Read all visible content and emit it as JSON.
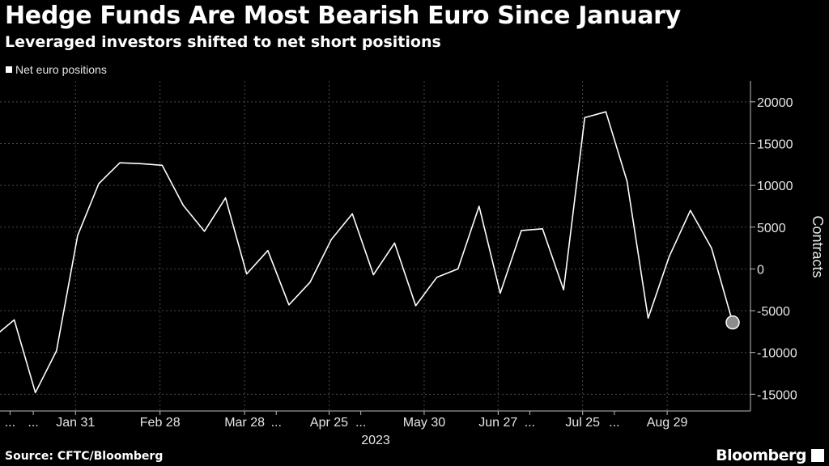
{
  "chart_data": {
    "type": "line",
    "title": "Hedge Funds Are Most Bearish Euro Since January",
    "subtitle": "Leveraged investors shifted to net short positions",
    "ylabel": "Contracts",
    "xlabel": "2023",
    "ylim": [
      -17000,
      22500
    ],
    "yticks": [
      {
        "value": 20000,
        "label": "20000"
      },
      {
        "value": 15000,
        "label": "15000"
      },
      {
        "value": 10000,
        "label": "10000"
      },
      {
        "value": 5000,
        "label": "5000"
      },
      {
        "value": 0,
        "label": "0"
      },
      {
        "value": -5000,
        "label": "-5000"
      },
      {
        "value": -10000,
        "label": "-10000"
      },
      {
        "value": -15000,
        "label": "-15000"
      }
    ],
    "xticks": [
      {
        "index": 0.8,
        "label": "..."
      },
      {
        "index": 1.9,
        "label": "..."
      },
      {
        "index": 3.9,
        "label": "Jan 31"
      },
      {
        "index": 7.9,
        "label": "Feb 28"
      },
      {
        "index": 11.9,
        "label": "Mar 28"
      },
      {
        "index": 13.4,
        "label": "..."
      },
      {
        "index": 15.9,
        "label": "Apr 25"
      },
      {
        "index": 17.4,
        "label": "..."
      },
      {
        "index": 20.4,
        "label": "May 30"
      },
      {
        "index": 23.9,
        "label": "Jun 27"
      },
      {
        "index": 25.4,
        "label": "..."
      },
      {
        "index": 27.9,
        "label": "Jul 25"
      },
      {
        "index": 29.4,
        "label": "..."
      },
      {
        "index": 31.9,
        "label": "Aug 29"
      }
    ],
    "series": [
      {
        "name": "Net euro positions",
        "color": "#ffffff",
        "values": [
          -8200,
          -6100,
          -14800,
          -9800,
          4000,
          10200,
          12700,
          12600,
          12400,
          7600,
          4500,
          8500,
          -600,
          2200,
          -4300,
          -1600,
          3500,
          6600,
          -700,
          3100,
          -4400,
          -1000,
          0,
          7500,
          -2900,
          4600,
          4800,
          -2500,
          18100,
          18800,
          10500,
          -5900,
          1500,
          7000,
          2500,
          -6400
        ]
      }
    ],
    "highlight_index": 35
  },
  "source": "Source: CFTC/Bloomberg",
  "brand": "Bloomberg"
}
